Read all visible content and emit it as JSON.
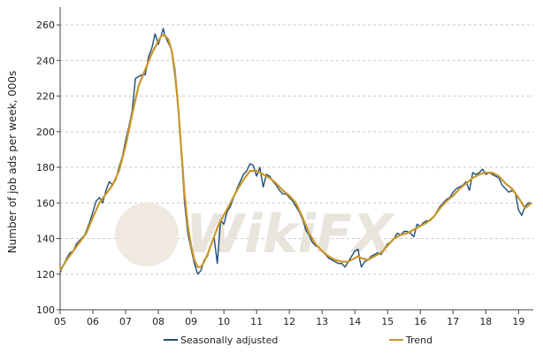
{
  "watermark": "WikiFX",
  "chart_data": {
    "type": "line",
    "ylabel": "Number of job ads per week, 000s",
    "xlabel": "",
    "title": "",
    "ylim": [
      100,
      270
    ],
    "yticks": [
      100,
      120,
      140,
      160,
      180,
      200,
      220,
      240,
      260
    ],
    "xlim": [
      2005,
      2019.45
    ],
    "xticks": [
      {
        "label": "05",
        "value": 2005
      },
      {
        "label": "06",
        "value": 2006
      },
      {
        "label": "07",
        "value": 2007
      },
      {
        "label": "08",
        "value": 2008
      },
      {
        "label": "09",
        "value": 2009
      },
      {
        "label": "10",
        "value": 2010
      },
      {
        "label": "11",
        "value": 2011
      },
      {
        "label": "12",
        "value": 2012
      },
      {
        "label": "13",
        "value": 2013
      },
      {
        "label": "14",
        "value": 2014
      },
      {
        "label": "15",
        "value": 2015
      },
      {
        "label": "16",
        "value": 2016
      },
      {
        "label": "17",
        "value": 2017
      },
      {
        "label": "18",
        "value": 2018
      },
      {
        "label": "19",
        "value": 2019
      }
    ],
    "grid": "horizontal dashed",
    "legend_position": "bottom",
    "series": [
      {
        "name": "Seasonally adjusted",
        "color": "#1f4e79",
        "points": [
          [
            2005.0,
            121
          ],
          [
            2005.1,
            125
          ],
          [
            2005.2,
            129
          ],
          [
            2005.3,
            132
          ],
          [
            2005.4,
            133
          ],
          [
            2005.5,
            137
          ],
          [
            2005.6,
            139
          ],
          [
            2005.75,
            142
          ],
          [
            2005.9,
            149
          ],
          [
            2006.0,
            155
          ],
          [
            2006.1,
            161
          ],
          [
            2006.2,
            163
          ],
          [
            2006.3,
            160
          ],
          [
            2006.4,
            167
          ],
          [
            2006.5,
            172
          ],
          [
            2006.6,
            170
          ],
          [
            2006.7,
            173
          ],
          [
            2006.8,
            180
          ],
          [
            2006.9,
            186
          ],
          [
            2007.0,
            195
          ],
          [
            2007.1,
            203
          ],
          [
            2007.2,
            212
          ],
          [
            2007.3,
            230
          ],
          [
            2007.4,
            231
          ],
          [
            2007.5,
            232
          ],
          [
            2007.6,
            232
          ],
          [
            2007.7,
            242
          ],
          [
            2007.8,
            247
          ],
          [
            2007.9,
            255
          ],
          [
            2008.0,
            249
          ],
          [
            2008.1,
            255
          ],
          [
            2008.15,
            258
          ],
          [
            2008.2,
            254
          ],
          [
            2008.3,
            250
          ],
          [
            2008.4,
            246
          ],
          [
            2008.5,
            232
          ],
          [
            2008.6,
            214
          ],
          [
            2008.7,
            188
          ],
          [
            2008.8,
            160
          ],
          [
            2008.9,
            143
          ],
          [
            2009.0,
            134
          ],
          [
            2009.1,
            126
          ],
          [
            2009.2,
            120
          ],
          [
            2009.3,
            122
          ],
          [
            2009.4,
            128
          ],
          [
            2009.5,
            130
          ],
          [
            2009.6,
            136
          ],
          [
            2009.7,
            141
          ],
          [
            2009.8,
            126
          ],
          [
            2009.9,
            150
          ],
          [
            2010.0,
            148
          ],
          [
            2010.1,
            155
          ],
          [
            2010.2,
            158
          ],
          [
            2010.3,
            163
          ],
          [
            2010.4,
            168
          ],
          [
            2010.5,
            172
          ],
          [
            2010.6,
            176
          ],
          [
            2010.7,
            178
          ],
          [
            2010.8,
            182
          ],
          [
            2010.9,
            181
          ],
          [
            2011.0,
            175
          ],
          [
            2011.1,
            180
          ],
          [
            2011.2,
            169
          ],
          [
            2011.3,
            176
          ],
          [
            2011.4,
            175
          ],
          [
            2011.5,
            172
          ],
          [
            2011.6,
            170
          ],
          [
            2011.7,
            167
          ],
          [
            2011.8,
            165
          ],
          [
            2011.9,
            165
          ],
          [
            2012.0,
            163
          ],
          [
            2012.1,
            161
          ],
          [
            2012.2,
            158
          ],
          [
            2012.3,
            155
          ],
          [
            2012.4,
            151
          ],
          [
            2012.5,
            145
          ],
          [
            2012.6,
            142
          ],
          [
            2012.7,
            138
          ],
          [
            2012.8,
            136
          ],
          [
            2012.9,
            135
          ],
          [
            2013.0,
            133
          ],
          [
            2013.1,
            131
          ],
          [
            2013.2,
            129
          ],
          [
            2013.3,
            128
          ],
          [
            2013.4,
            127
          ],
          [
            2013.5,
            126
          ],
          [
            2013.6,
            126
          ],
          [
            2013.7,
            124
          ],
          [
            2013.8,
            127
          ],
          [
            2013.9,
            130
          ],
          [
            2014.0,
            133
          ],
          [
            2014.1,
            134
          ],
          [
            2014.15,
            128
          ],
          [
            2014.2,
            124
          ],
          [
            2014.3,
            127
          ],
          [
            2014.4,
            128
          ],
          [
            2014.5,
            130
          ],
          [
            2014.6,
            131
          ],
          [
            2014.7,
            132
          ],
          [
            2014.8,
            131
          ],
          [
            2014.9,
            134
          ],
          [
            2015.0,
            137
          ],
          [
            2015.1,
            138
          ],
          [
            2015.2,
            140
          ],
          [
            2015.3,
            143
          ],
          [
            2015.4,
            142
          ],
          [
            2015.5,
            144
          ],
          [
            2015.6,
            144
          ],
          [
            2015.7,
            143
          ],
          [
            2015.8,
            141
          ],
          [
            2015.9,
            148
          ],
          [
            2016.0,
            147
          ],
          [
            2016.1,
            149
          ],
          [
            2016.2,
            150
          ],
          [
            2016.3,
            150
          ],
          [
            2016.4,
            152
          ],
          [
            2016.5,
            155
          ],
          [
            2016.6,
            158
          ],
          [
            2016.7,
            160
          ],
          [
            2016.8,
            162
          ],
          [
            2016.9,
            163
          ],
          [
            2017.0,
            166
          ],
          [
            2017.1,
            168
          ],
          [
            2017.2,
            169
          ],
          [
            2017.3,
            170
          ],
          [
            2017.4,
            172
          ],
          [
            2017.5,
            167
          ],
          [
            2017.6,
            177
          ],
          [
            2017.7,
            176
          ],
          [
            2017.8,
            177
          ],
          [
            2017.9,
            179
          ],
          [
            2018.0,
            176
          ],
          [
            2018.1,
            177
          ],
          [
            2018.2,
            176
          ],
          [
            2018.3,
            175
          ],
          [
            2018.4,
            174
          ],
          [
            2018.5,
            170
          ],
          [
            2018.6,
            168
          ],
          [
            2018.7,
            166
          ],
          [
            2018.8,
            167
          ],
          [
            2018.9,
            166
          ],
          [
            2019.0,
            156
          ],
          [
            2019.1,
            153
          ],
          [
            2019.2,
            158
          ],
          [
            2019.3,
            160
          ],
          [
            2019.4,
            160
          ]
        ]
      },
      {
        "name": "Trend",
        "color": "#c9962a",
        "points": [
          [
            2005.0,
            122
          ],
          [
            2005.2,
            128
          ],
          [
            2005.4,
            133
          ],
          [
            2005.6,
            138
          ],
          [
            2005.8,
            143
          ],
          [
            2006.0,
            152
          ],
          [
            2006.2,
            160
          ],
          [
            2006.4,
            165
          ],
          [
            2006.6,
            170
          ],
          [
            2006.8,
            178
          ],
          [
            2007.0,
            192
          ],
          [
            2007.2,
            210
          ],
          [
            2007.4,
            226
          ],
          [
            2007.6,
            235
          ],
          [
            2007.8,
            244
          ],
          [
            2008.0,
            251
          ],
          [
            2008.1,
            254
          ],
          [
            2008.2,
            254
          ],
          [
            2008.3,
            252
          ],
          [
            2008.4,
            246
          ],
          [
            2008.5,
            235
          ],
          [
            2008.6,
            215
          ],
          [
            2008.7,
            190
          ],
          [
            2008.8,
            165
          ],
          [
            2008.9,
            147
          ],
          [
            2009.0,
            136
          ],
          [
            2009.1,
            128
          ],
          [
            2009.2,
            124
          ],
          [
            2009.3,
            124
          ],
          [
            2009.4,
            127
          ],
          [
            2009.5,
            131
          ],
          [
            2009.6,
            136
          ],
          [
            2009.7,
            141
          ],
          [
            2009.8,
            146
          ],
          [
            2009.9,
            150
          ],
          [
            2010.0,
            153
          ],
          [
            2010.2,
            160
          ],
          [
            2010.4,
            167
          ],
          [
            2010.6,
            173
          ],
          [
            2010.8,
            178
          ],
          [
            2011.0,
            178
          ],
          [
            2011.2,
            176
          ],
          [
            2011.4,
            174
          ],
          [
            2011.6,
            171
          ],
          [
            2011.8,
            167
          ],
          [
            2012.0,
            164
          ],
          [
            2012.2,
            160
          ],
          [
            2012.4,
            152
          ],
          [
            2012.6,
            143
          ],
          [
            2012.8,
            137
          ],
          [
            2013.0,
            133
          ],
          [
            2013.2,
            130
          ],
          [
            2013.4,
            128
          ],
          [
            2013.6,
            127
          ],
          [
            2013.8,
            127
          ],
          [
            2014.0,
            129
          ],
          [
            2014.1,
            130
          ],
          [
            2014.2,
            129
          ],
          [
            2014.4,
            128
          ],
          [
            2014.6,
            130
          ],
          [
            2014.8,
            132
          ],
          [
            2015.0,
            136
          ],
          [
            2015.2,
            140
          ],
          [
            2015.4,
            142
          ],
          [
            2015.6,
            143
          ],
          [
            2015.8,
            145
          ],
          [
            2016.0,
            147
          ],
          [
            2016.2,
            149
          ],
          [
            2016.4,
            152
          ],
          [
            2016.6,
            157
          ],
          [
            2016.8,
            161
          ],
          [
            2017.0,
            164
          ],
          [
            2017.2,
            168
          ],
          [
            2017.4,
            171
          ],
          [
            2017.6,
            174
          ],
          [
            2017.8,
            176
          ],
          [
            2018.0,
            177
          ],
          [
            2018.2,
            177
          ],
          [
            2018.4,
            175
          ],
          [
            2018.6,
            171
          ],
          [
            2018.8,
            168
          ],
          [
            2019.0,
            163
          ],
          [
            2019.2,
            157
          ],
          [
            2019.4,
            160
          ]
        ]
      }
    ]
  }
}
